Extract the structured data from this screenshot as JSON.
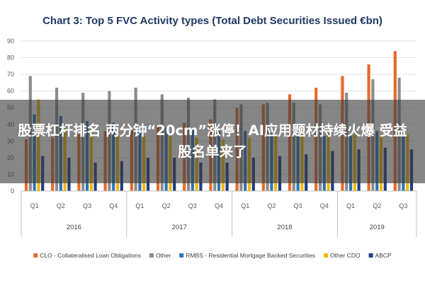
{
  "chart_data": {
    "type": "bar",
    "title": "Chart 3: Top 5 FVC Activity types (Total Debt Securities Issued €bn)",
    "ylim": [
      0,
      90
    ],
    "yticks": [
      0,
      10,
      20,
      30,
      40,
      50,
      60,
      70,
      80,
      90
    ],
    "grid": true,
    "legend_position": "bottom",
    "categories": [
      "Q1",
      "Q2",
      "Q3",
      "Q4",
      "Q1",
      "Q2",
      "Q3",
      "Q4",
      "Q1",
      "Q2",
      "Q3",
      "Q4",
      "Q1",
      "Q2",
      "Q3"
    ],
    "groups": [
      {
        "label": "2016",
        "count": 4
      },
      {
        "label": "2017",
        "count": 4
      },
      {
        "label": "2018",
        "count": 4
      },
      {
        "label": "2019",
        "count": 3
      }
    ],
    "series": [
      {
        "name": "CLO - Collateralised Loan Obligations",
        "color": "#e46c2b",
        "values": [
          31,
          32,
          34,
          36,
          37,
          39,
          41,
          43,
          50,
          52,
          58,
          62,
          69,
          76,
          84
        ]
      },
      {
        "name": "Other",
        "color": "#8c8c8c",
        "values": [
          69,
          62,
          59,
          60,
          62,
          58,
          56,
          55,
          52,
          53,
          53,
          52,
          59,
          67,
          68
        ]
      },
      {
        "name": "RMBS - Residential Mortgage Backed Securities",
        "color": "#2e75b6",
        "values": [
          46,
          45,
          42,
          41,
          39,
          38,
          37,
          36,
          36,
          35,
          34,
          33,
          33,
          36,
          33
        ]
      },
      {
        "name": "Other CDO",
        "color": "#f2b800",
        "values": [
          55,
          38,
          35,
          33,
          33,
          33,
          32,
          31,
          32,
          33,
          34,
          35,
          34,
          34,
          34
        ]
      },
      {
        "name": "ABCP",
        "color": "#1f3b8a",
        "values": [
          21,
          20,
          17,
          18,
          20,
          20,
          17,
          17,
          20,
          21,
          22,
          24,
          25,
          26,
          25
        ]
      }
    ]
  },
  "overlay": {
    "headline": "股票杠杆排名 两分钟“20cm”涨停！AI应用题材持续火爆 受益股名单来了"
  }
}
